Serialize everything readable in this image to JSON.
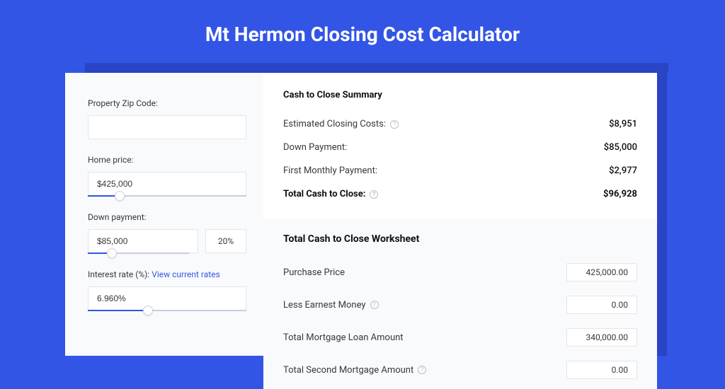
{
  "page": {
    "title": "Mt Hermon Closing Cost Calculator",
    "background": "#3355e6",
    "shadow": "#2944c5"
  },
  "form": {
    "zip_label": "Property Zip Code:",
    "zip_value": "",
    "home_price_label": "Home price:",
    "home_price_value": "$425,000",
    "home_price_slider_pct": 20,
    "down_payment_label": "Down payment:",
    "down_payment_value": "$85,000",
    "down_payment_pct": "20%",
    "down_payment_slider_pct": 24,
    "interest_label_prefix": "Interest rate (%): ",
    "interest_link_text": "View current rates",
    "interest_value": "6.960%",
    "interest_slider_pct": 38
  },
  "summary": {
    "header": "Cash to Close Summary",
    "rows": [
      {
        "label": "Estimated Closing Costs:",
        "help": true,
        "value": "$8,951",
        "bold": false
      },
      {
        "label": "Down Payment:",
        "help": false,
        "value": "$85,000",
        "bold": false
      },
      {
        "label": "First Monthly Payment:",
        "help": false,
        "value": "$2,977",
        "bold": false
      },
      {
        "label": "Total Cash to Close:",
        "help": true,
        "value": "$96,928",
        "bold": true
      }
    ]
  },
  "worksheet": {
    "header": "Total Cash to Close Worksheet",
    "rows": [
      {
        "label": "Purchase Price",
        "help": false,
        "value": "425,000.00"
      },
      {
        "label": "Less Earnest Money",
        "help": true,
        "value": "0.00"
      },
      {
        "label": "Total Mortgage Loan Amount",
        "help": false,
        "value": "340,000.00"
      },
      {
        "label": "Total Second Mortgage Amount",
        "help": true,
        "value": "0.00"
      }
    ]
  },
  "colors": {
    "accent": "#3355e6",
    "text": "#383838",
    "heading": "#101010",
    "border": "#e3e5ea",
    "panel_bg": "#f9fafc"
  }
}
